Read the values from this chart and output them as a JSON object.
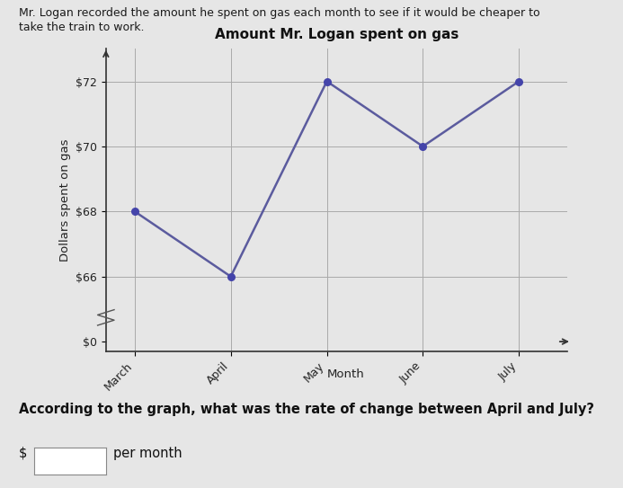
{
  "title": "Amount Mr. Logan spent on gas",
  "xlabel": "Month",
  "ylabel": "Dollars spent on gas",
  "months": [
    "March",
    "April",
    "May",
    "June",
    "July"
  ],
  "values": [
    68,
    66,
    72,
    70,
    72
  ],
  "line_color": "#5B5B9E",
  "marker_color": "#4444aa",
  "yticks_display": [
    "$0",
    "$66",
    "$68",
    "$70",
    "$72"
  ],
  "ytick_positions": [
    0,
    66,
    68,
    70,
    72
  ],
  "ylim": [
    0,
    74
  ],
  "bg_color": "#e6e6e6",
  "header_text_line1": "Mr. Logan recorded the amount he spent on gas each month to see if it would be cheaper to",
  "header_text_line2": "take the train to work.",
  "question_text": "According to the graph, what was the rate of change between April and July?",
  "answer_prefix": "$",
  "answer_suffix": "per month",
  "title_fontsize": 11,
  "axis_label_fontsize": 9.5,
  "tick_fontsize": 9,
  "header_fontsize": 9,
  "question_fontsize": 10.5
}
